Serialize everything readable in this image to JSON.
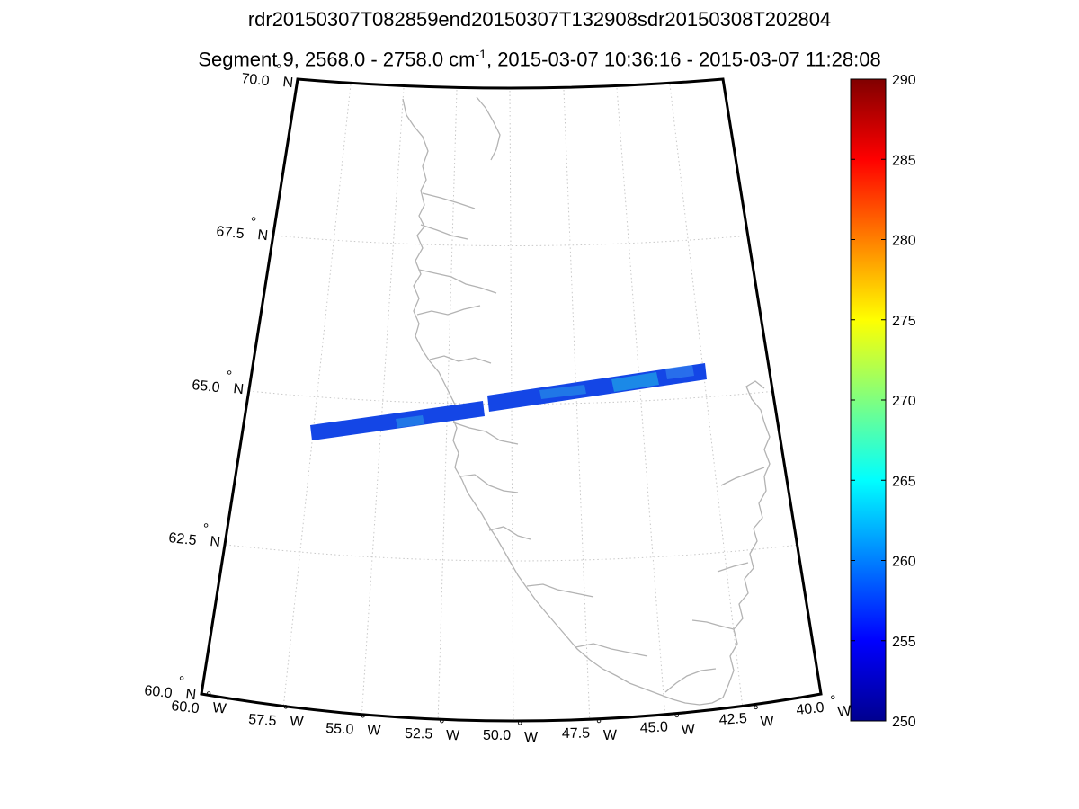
{
  "title": {
    "line1": "rdr20150307T082859end20150307T132908sdr20150308T202804",
    "line2_pre": "Segment 9, 2568.0 - 2758.0 cm",
    "line2_sup": "-1",
    "line2_post": ", 2015-03-07 10:36:16 - 2015-03-07 11:28:08"
  },
  "map": {
    "projection": "conic",
    "lat_range": [
      60.0,
      70.0
    ],
    "lon_range": [
      -60.0,
      -40.0
    ],
    "lat_labels": [
      {
        "deg": "70.0",
        "hemi": "N"
      },
      {
        "deg": "67.5",
        "hemi": "N"
      },
      {
        "deg": "65.0",
        "hemi": "N"
      },
      {
        "deg": "62.5",
        "hemi": "N"
      },
      {
        "deg": "60.0",
        "hemi": "N"
      }
    ],
    "lon_labels": [
      {
        "deg": "60.0",
        "hemi": "W"
      },
      {
        "deg": "57.5",
        "hemi": "W"
      },
      {
        "deg": "55.0",
        "hemi": "W"
      },
      {
        "deg": "52.5",
        "hemi": "W"
      },
      {
        "deg": "50.0",
        "hemi": "W"
      },
      {
        "deg": "47.5",
        "hemi": "W"
      },
      {
        "deg": "45.0",
        "hemi": "W"
      },
      {
        "deg": "42.5",
        "hemi": "W"
      },
      {
        "deg": "40.0",
        "hemi": "W"
      }
    ],
    "coastline_color": "#b3b3b3",
    "grid_color": "#c8c8c8",
    "swath": {
      "start_lon": -57.8,
      "end_lon": -41.9,
      "center_lat": 64.9,
      "gap_lon": -50.5
    },
    "swath_colors": {
      "base": "#1446e6",
      "highlight": "#22b4e6"
    }
  },
  "colorbar": {
    "min": 250,
    "max": 290,
    "tick_labels": [
      "290",
      "285",
      "280",
      "275",
      "270",
      "265",
      "260",
      "255",
      "250"
    ],
    "colormap": "jet"
  }
}
